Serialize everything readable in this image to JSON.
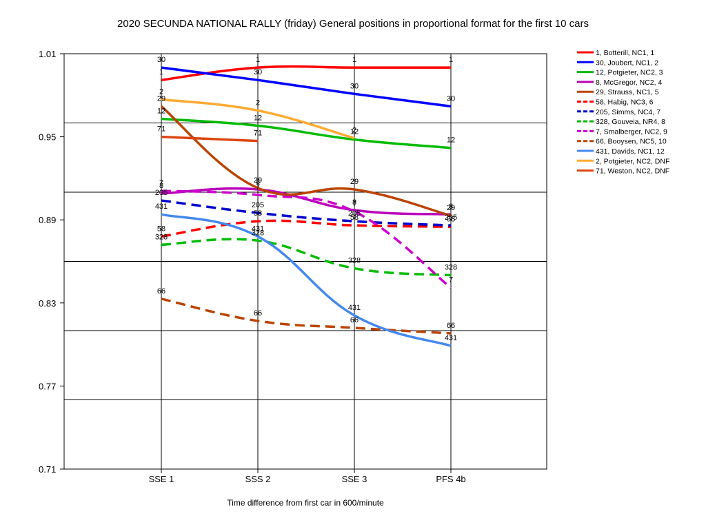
{
  "chart_data": {
    "type": "line",
    "title": "2020 SECUNDA NATIONAL RALLY (friday)  General positions in proportional format for the first 10 cars",
    "xlabel": "Time difference from first car in 600/minute",
    "ylabel": "",
    "categories": [
      "SSE 1",
      "SSS 2",
      "SSE 3",
      "PFS 4b"
    ],
    "ylim": [
      0.71,
      1.01
    ],
    "yticks": [
      "0.71",
      "0.77",
      "0.83",
      "0.89",
      "0.95",
      "1.01"
    ],
    "grid": "horizontal",
    "legend_position": "right",
    "series": [
      {
        "name": "1, Botterill, NC1, 1",
        "label": "1",
        "color": "#ff0000",
        "dash": false,
        "values": [
          0.991,
          1.0,
          1.0,
          1.0
        ]
      },
      {
        "name": "30, Joubert, NC1, 2",
        "label": "30",
        "color": "#0000ff",
        "dash": false,
        "values": [
          1.0,
          0.991,
          0.981,
          0.972
        ]
      },
      {
        "name": "12, Potgieter, NC2, 3",
        "label": "12",
        "color": "#00bb00",
        "dash": false,
        "values": [
          0.963,
          0.958,
          0.948,
          0.942
        ]
      },
      {
        "name": "8, McGregor, NC2, 4",
        "label": "8",
        "color": "#bb00bb",
        "dash": false,
        "values": [
          0.909,
          0.912,
          0.897,
          0.894
        ]
      },
      {
        "name": "29, Strauss, NC1, 5",
        "label": "29",
        "color": "#bb4400",
        "dash": false,
        "values": [
          0.972,
          0.913,
          0.912,
          0.893
        ]
      },
      {
        "name": "58, Habig, NC3, 6",
        "label": "58",
        "color": "#ff0000",
        "dash": true,
        "values": [
          0.878,
          0.889,
          0.886,
          0.885
        ]
      },
      {
        "name": "205, Simms, NC4, 7",
        "label": "205",
        "color": "#0000cc",
        "dash": true,
        "values": [
          0.904,
          0.895,
          0.889,
          0.886
        ]
      },
      {
        "name": "328, Gouveia, NR4, 8",
        "label": "328",
        "color": "#00bb00",
        "dash": true,
        "values": [
          0.872,
          0.875,
          0.855,
          0.85
        ]
      },
      {
        "name": "7, Smalberger, NC2, 9",
        "label": "7",
        "color": "#cc00cc",
        "dash": true,
        "values": [
          0.911,
          0.908,
          0.896,
          0.841
        ]
      },
      {
        "name": "66, Booysen, NC5, 10",
        "label": "66",
        "color": "#bb4400",
        "dash": true,
        "values": [
          0.833,
          0.817,
          0.812,
          0.808
        ]
      },
      {
        "name": "431, Davids, NC1, 12",
        "label": "431",
        "color": "#4488ee",
        "dash": false,
        "values": [
          0.894,
          0.878,
          0.821,
          0.799
        ]
      },
      {
        "name": "2, Potgieter, NC2, DNF",
        "label": "2",
        "color": "#ffaa33",
        "dash": false,
        "values": [
          0.977,
          0.969,
          0.949,
          null
        ]
      },
      {
        "name": "71, Weston, NC2, DNF",
        "label": "71",
        "color": "#dd4411",
        "dash": false,
        "values": [
          0.95,
          0.947,
          null,
          null
        ]
      }
    ]
  }
}
